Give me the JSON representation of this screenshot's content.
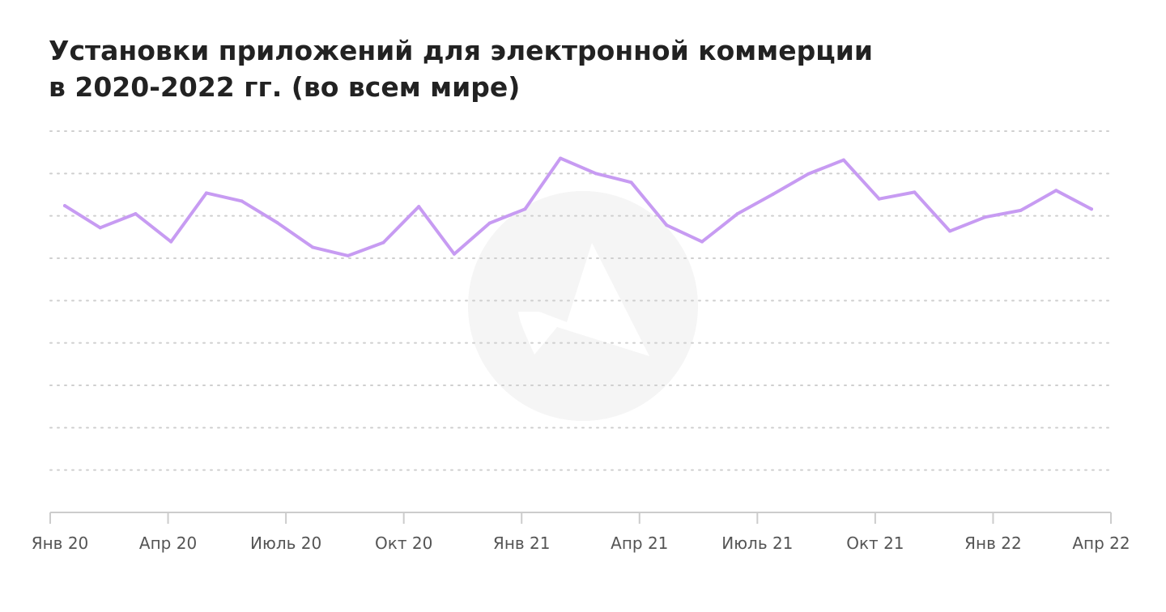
{
  "title": {
    "line1": "Установки приложений для электронной коммерции",
    "line2": "в 2020-2022 гг. (во всем мире)"
  },
  "watermark": {
    "icon": "adjust-logo-icon"
  },
  "colors": {
    "line": "#c79bf2",
    "grid": "#cfcfcf",
    "axis": "#cccccc",
    "watermark": "#f5f5f5"
  },
  "chart_data": {
    "type": "line",
    "title": "Установки приложений для электронной коммерции в 2020-2022 гг. (во всем мире)",
    "xlabel": "",
    "ylabel": "",
    "y_axis_labels_shown": false,
    "grid": "horizontal-dotted",
    "ylim": [
      0,
      9
    ],
    "x_tick_labels": [
      "Янв 20",
      "Апр 20",
      "Июль 20",
      "Окт 20",
      "Янв 21",
      "Апр 21",
      "Июль 21",
      "Окт 21",
      "Янв 22",
      "Апр 22"
    ],
    "series": [
      {
        "values": [
          7.24,
          6.72,
          7.05,
          6.39,
          7.54,
          7.35,
          6.84,
          6.26,
          6.06,
          6.37,
          7.22,
          6.1,
          6.83,
          7.16,
          8.36,
          8.0,
          7.79,
          6.78,
          6.39,
          7.05,
          7.51,
          7.99,
          8.32,
          7.4,
          7.56,
          6.64,
          6.97,
          7.13,
          7.6,
          7.16
        ]
      }
    ]
  }
}
